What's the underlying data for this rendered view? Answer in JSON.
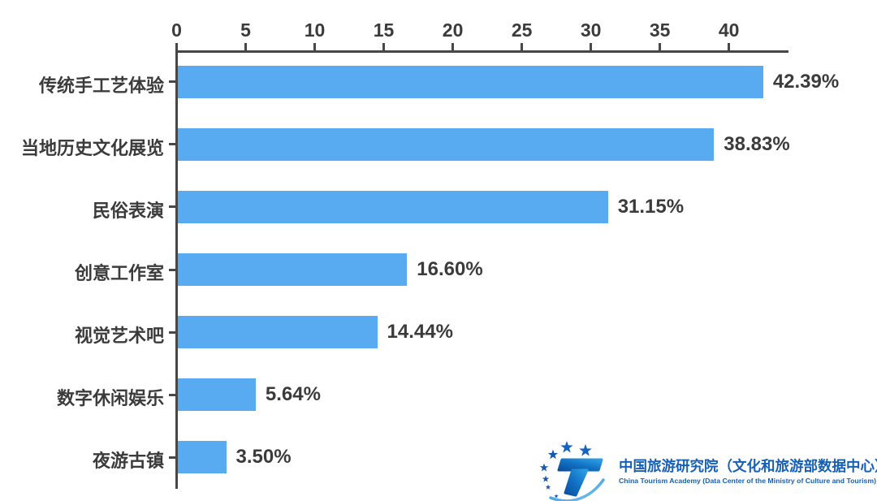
{
  "chart_data": {
    "type": "bar",
    "orientation": "horizontal",
    "title": "",
    "categories": [
      "传统手工艺体验",
      "当地历史文化展览",
      "民俗表演",
      "创意工作室",
      "视觉艺术吧",
      "数字休闲娱乐",
      "夜游古镇"
    ],
    "values": [
      42.39,
      38.83,
      31.15,
      16.6,
      14.44,
      5.64,
      3.5
    ],
    "data_labels": [
      "42.39%",
      "38.83%",
      "31.15%",
      "16.60%",
      "14.44%",
      "5.64%",
      "3.50%"
    ],
    "x_ticks": [
      0,
      5,
      10,
      15,
      20,
      25,
      30,
      35,
      40
    ],
    "xlim": [
      0,
      44.4
    ],
    "xlabel": "",
    "ylabel": "",
    "grid": false,
    "legend": null,
    "bar_color": "#58abf0",
    "axis_color": "#474747",
    "text_color": "#3b3b3b"
  },
  "branding": {
    "org_cn": "中国旅游研究院（文化和旅游部数据中心）",
    "org_en": "China Tourism Academy (Data Center of the Ministry of Culture and Tourism)",
    "logo_color": "#1660b5",
    "star_color": "#1558ad"
  }
}
